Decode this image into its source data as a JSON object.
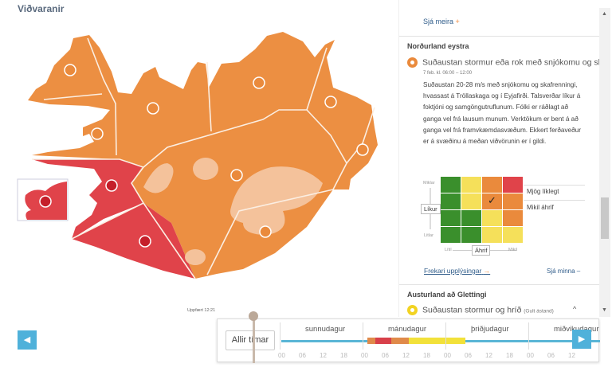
{
  "title": "Viðvaranir",
  "updated": "Uppfært 12:21",
  "panel": {
    "see_more": "Sjá meira",
    "regions": [
      {
        "name": "Norðurland eystra",
        "warning_title": "Suðaustan stormur eða rok með snjókomu og skafrenningi",
        "date": "7 feb. kl. 06:00 – 12:00",
        "description": "Suðaustan 20-28 m/s með snjókomu og skafrenningi, hvassast á Tröllaskaga og í Eyjafirði. Talsverðar líkur á foktjóni og samgöngutruflunum. Fólki er ráðlagt að ganga vel frá lausum munum. Verktökum er bent á að ganga vel frá framvkæmdasvæðum. Ekkert ferðaveður er á svæðinu á meðan viðvörunin er í gildi.",
        "matrix": {
          "likelihood_label": "Líkur",
          "impact_label": "Áhrif",
          "likelihood_high": "Miklar",
          "likelihood_low": "Litlar",
          "impact_low": "Lítil",
          "impact_high": "Mikil",
          "selected_likelihood": "Mjög líklegt",
          "selected_impact": "Mikil áhrif",
          "colors": [
            [
              "#3a8f2c",
              "#f5e05a",
              "#ea8a3c",
              "#e0434a"
            ],
            [
              "#3a8f2c",
              "#f5e05a",
              "#ea8a3c",
              "#ea8a3c"
            ],
            [
              "#3a8f2c",
              "#3a8f2c",
              "#f5e05a",
              "#ea8a3c"
            ],
            [
              "#3a8f2c",
              "#3a8f2c",
              "#f5e05a",
              "#f5e05a"
            ]
          ],
          "selected_cell": [
            1,
            2
          ]
        },
        "more_info": "Frekari upplýsingar",
        "see_less": "Sjá minna"
      },
      {
        "name": "Austurland að Glettingi",
        "warning_title": "Suðaustan stormur og hríð",
        "level": "(Gult ástand)"
      }
    ]
  },
  "timeline": {
    "all_times": "Allir tímar",
    "days": [
      "sunnudagur",
      "mánudagur",
      "þriðjudagur",
      "miðvikudagur"
    ],
    "hours": [
      "00",
      "06",
      "12",
      "18",
      "00",
      "06",
      "12",
      "18",
      "00",
      "06",
      "12",
      "18",
      "00",
      "06",
      "12"
    ]
  },
  "colors": {
    "orange": "#ea8a3c",
    "red": "#e0434a",
    "yellow": "#f2e13a",
    "accent": "#4fb1da"
  }
}
